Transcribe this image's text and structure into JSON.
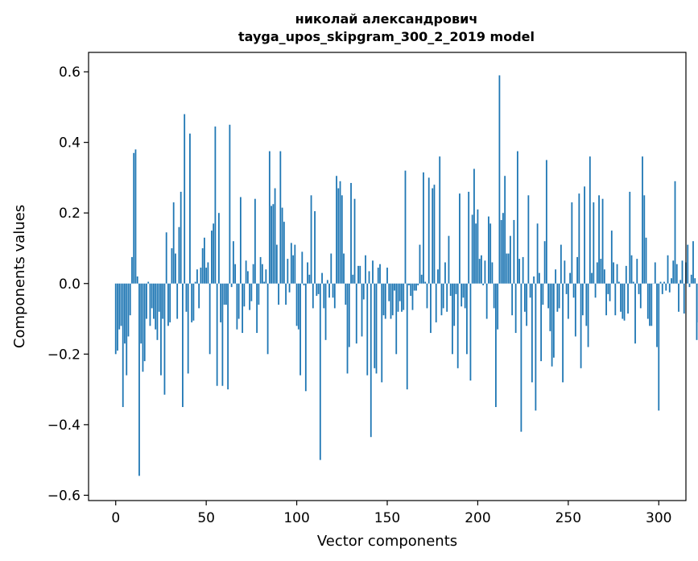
{
  "colors": {
    "bar": "#1f77b4",
    "axis": "#000000",
    "background": "#ffffff"
  },
  "chart_data": {
    "type": "bar",
    "title": [
      "николай александрович",
      "tayga_upos_skipgram_300_2_2019 model"
    ],
    "xlabel": "Vector components",
    "ylabel": "Components values",
    "xlim": [
      -15,
      315
    ],
    "ylim": [
      -0.615,
      0.655
    ],
    "xticks": [
      0,
      50,
      100,
      150,
      200,
      250,
      300
    ],
    "xtick_labels": [
      "0",
      "50",
      "100",
      "150",
      "200",
      "250",
      "300"
    ],
    "yticks": [
      -0.6,
      -0.4,
      -0.2,
      0.0,
      0.2,
      0.4,
      0.6
    ],
    "ytick_labels": [
      "−0.6",
      "−0.4",
      "−0.2",
      "0.0",
      "0.2",
      "0.4",
      "0.6"
    ],
    "bar_width": 0.8,
    "categories_start": 0,
    "values": [
      -0.2,
      -0.19,
      -0.13,
      -0.12,
      -0.35,
      -0.17,
      -0.26,
      -0.15,
      -0.09,
      0.075,
      0.37,
      0.38,
      0.02,
      -0.545,
      -0.17,
      -0.25,
      -0.22,
      -0.1,
      0.005,
      -0.12,
      -0.07,
      -0.1,
      -0.13,
      -0.16,
      -0.08,
      -0.26,
      -0.1,
      -0.315,
      0.145,
      -0.12,
      -0.11,
      0.1,
      0.23,
      0.085,
      -0.1,
      0.16,
      0.26,
      -0.35,
      0.48,
      -0.08,
      -0.255,
      0.425,
      -0.11,
      -0.105,
      0.005,
      0.04,
      -0.07,
      0.045,
      0.1,
      0.13,
      0.045,
      0.06,
      -0.2,
      0.15,
      0.17,
      0.445,
      -0.29,
      0.2,
      -0.11,
      -0.29,
      -0.06,
      -0.06,
      -0.3,
      0.45,
      -0.01,
      0.12,
      0.055,
      -0.13,
      -0.1,
      0.245,
      -0.14,
      -0.065,
      0.065,
      0.035,
      -0.075,
      -0.05,
      0.055,
      0.24,
      -0.14,
      -0.06,
      0.075,
      0.055,
      0.005,
      0.04,
      -0.2,
      0.375,
      0.22,
      0.225,
      0.27,
      0.11,
      -0.06,
      0.375,
      0.215,
      0.175,
      -0.06,
      0.07,
      -0.025,
      0.115,
      0.08,
      0.11,
      -0.12,
      -0.13,
      -0.26,
      0.09,
      -0.005,
      -0.305,
      0.06,
      0.025,
      0.25,
      -0.07,
      0.205,
      -0.035,
      -0.03,
      -0.5,
      0.03,
      -0.07,
      -0.16,
      0.01,
      -0.04,
      0.085,
      -0.04,
      -0.07,
      0.305,
      0.27,
      0.29,
      0.25,
      0.085,
      -0.06,
      -0.255,
      -0.18,
      0.285,
      0.025,
      0.24,
      -0.17,
      0.05,
      0.05,
      -0.15,
      -0.045,
      0.08,
      -0.26,
      0.035,
      -0.435,
      0.065,
      -0.24,
      -0.255,
      0.045,
      0.055,
      -0.28,
      -0.09,
      -0.1,
      0.045,
      -0.05,
      -0.1,
      -0.09,
      -0.02,
      -0.2,
      -0.08,
      -0.05,
      -0.08,
      -0.075,
      0.32,
      -0.3,
      -0.005,
      -0.035,
      -0.075,
      -0.02,
      -0.02,
      -0.005,
      0.11,
      0.025,
      0.315,
      0.005,
      -0.07,
      0.3,
      -0.14,
      0.27,
      0.28,
      -0.11,
      0.04,
      0.36,
      -0.09,
      -0.07,
      0.06,
      -0.08,
      0.135,
      -0.035,
      -0.2,
      -0.12,
      -0.03,
      -0.24,
      0.255,
      -0.065,
      -0.04,
      -0.07,
      -0.2,
      0.26,
      -0.275,
      0.195,
      0.325,
      0.17,
      0.21,
      0.07,
      0.08,
      -0.005,
      0.065,
      -0.1,
      0.19,
      0.17,
      0.06,
      -0.07,
      -0.35,
      -0.13,
      0.59,
      0.18,
      0.2,
      0.305,
      0.085,
      0.085,
      0.135,
      -0.09,
      0.18,
      -0.14,
      0.375,
      0.07,
      -0.42,
      0.075,
      -0.08,
      -0.12,
      0.25,
      -0.04,
      -0.28,
      0.02,
      -0.36,
      0.17,
      0.03,
      -0.22,
      -0.06,
      0.12,
      0.35,
      -0.07,
      -0.135,
      -0.235,
      -0.21,
      0.04,
      -0.08,
      -0.07,
      0.11,
      -0.28,
      0.065,
      -0.03,
      -0.1,
      0.03,
      0.23,
      -0.04,
      -0.15,
      0.075,
      0.255,
      -0.24,
      -0.09,
      0.275,
      -0.12,
      -0.18,
      0.36,
      0.03,
      0.23,
      -0.04,
      0.06,
      0.25,
      0.07,
      0.24,
      0.04,
      -0.09,
      -0.03,
      -0.05,
      0.15,
      0.06,
      -0.09,
      0.055,
      0.005,
      -0.08,
      -0.1,
      -0.105,
      0.05,
      -0.085,
      0.26,
      0.08,
      0.005,
      -0.17,
      0.07,
      -0.03,
      -0.07,
      0.36,
      0.25,
      0.13,
      -0.1,
      -0.12,
      -0.12,
      0.0,
      0.06,
      -0.18,
      -0.36,
      0.005,
      -0.03,
      0.005,
      -0.02,
      0.08,
      -0.025,
      0.015,
      0.065,
      0.29,
      0.055,
      -0.08,
      0.01,
      0.065,
      -0.085,
      0.06,
      0.11,
      -0.01,
      0.025,
      0.12,
      0.015,
      -0.16,
      -0.11,
      0.24,
      -0.09,
      0.065,
      0.26,
      0.14,
      0.22,
      0.02,
      0.075,
      0.03,
      -0.03,
      -0.16,
      -0.07,
      -0.05,
      -0.07,
      0.005,
      -0.04,
      0.07,
      0.08,
      0.05,
      -0.09,
      -0.11,
      0.03,
      -0.07,
      0.045,
      0.02,
      -0.07,
      -0.03,
      0.02,
      0.32,
      0.1,
      -0.06,
      -0.04,
      0.03,
      0.12,
      0.035,
      0.005,
      -0.17,
      -0.09,
      0.04,
      0.005,
      -0.02,
      0.17,
      0.22,
      0.26,
      0.02,
      0.04,
      -0.1,
      -0.13,
      0.05,
      0.1,
      0.06,
      0.03,
      -0.03,
      -0.01,
      0.01,
      0.0,
      -0.06,
      -0.21,
      -0.12,
      0.07,
      -0.03,
      -0.08,
      -0.17,
      -0.14,
      -0.04,
      -0.05,
      0.065,
      0.01,
      -0.14,
      0.07,
      0.06,
      0.01,
      0.045,
      0.02,
      0.0,
      -0.02,
      0.065,
      0.05,
      -0.01,
      -0.07,
      -0.09,
      0.01,
      0.06,
      -0.05,
      -0.005,
      0.08,
      -0.04,
      0.105,
      0.02,
      0.19,
      0.09,
      -0.075,
      0.33,
      0.0,
      0.045,
      -0.06,
      -0.1,
      -0.11,
      0.04,
      0.06,
      -0.03,
      0.01,
      0.04,
      0.0,
      -0.03,
      0.22,
      0.095,
      -0.095,
      -0.005,
      0.07,
      0.135,
      0.25,
      -0.05,
      0.01,
      0.03,
      -0.13,
      0.005,
      0.035,
      -0.06,
      -0.04,
      0.13,
      0.01,
      0.05,
      -0.09,
      0.005,
      0.07,
      0.01,
      -0.045,
      0.2,
      -0.07,
      -0.18,
      0.14,
      -0.03,
      0.08,
      0.18,
      0.005,
      -0.11,
      0.005,
      -0.09,
      0.15,
      0.015,
      0.005,
      0.02,
      0.18,
      -0.05,
      -0.08,
      -0.1,
      0.04,
      0.08,
      -0.15,
      -0.08,
      0.09,
      -0.02,
      -0.36,
      0.1,
      0.12,
      0.27,
      0.145,
      0.06,
      -0.3,
      -0.26,
      0.12,
      0.06,
      -0.41,
      -0.2,
      0.07,
      -0.08,
      0.025,
      0.02,
      -0.42,
      0.1,
      -0.18,
      0.24,
      0.02,
      -0.12,
      0.03,
      0.14,
      0.1,
      0.08,
      -0.37,
      -0.08,
      0.295,
      0.19,
      0.02,
      0.075,
      -0.26,
      0.6,
      -0.27,
      0.55,
      0.025
    ]
  }
}
